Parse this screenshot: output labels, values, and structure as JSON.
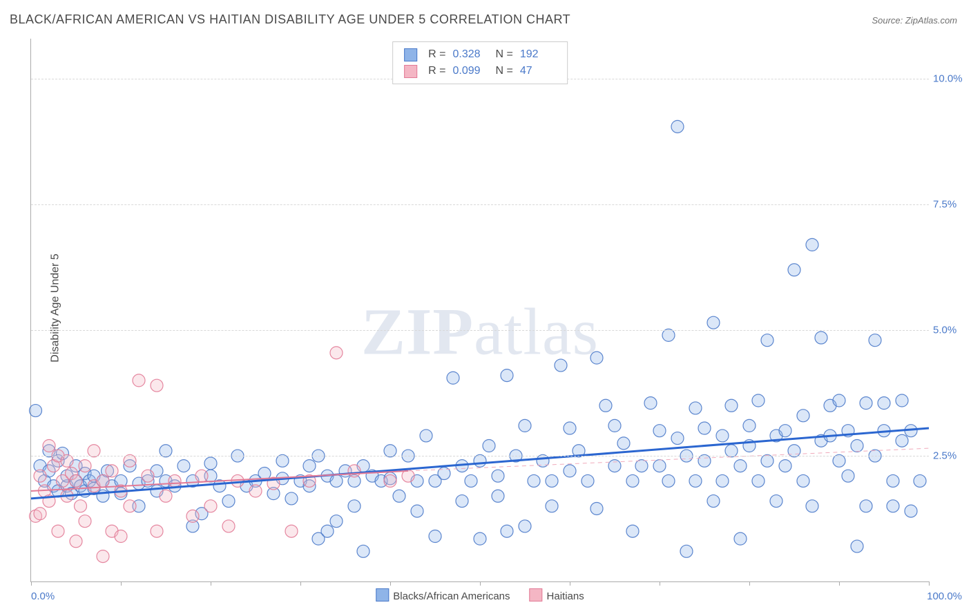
{
  "title": "BLACK/AFRICAN AMERICAN VS HAITIAN DISABILITY AGE UNDER 5 CORRELATION CHART",
  "source": "Source: ZipAtlas.com",
  "ylabel": "Disability Age Under 5",
  "watermark_a": "ZIP",
  "watermark_b": "atlas",
  "chart": {
    "type": "scatter",
    "background_color": "#ffffff",
    "grid_color": "#d8d8d8",
    "axis_color": "#aaaaaa",
    "tick_label_color": "#4a79c9",
    "text_color": "#4a4a4a",
    "title_fontsize": 18,
    "label_fontsize": 16,
    "tick_fontsize": 15,
    "xlim": [
      0,
      100
    ],
    "ylim": [
      0,
      10.8
    ],
    "x_ticks": [
      0,
      10,
      20,
      30,
      40,
      50,
      60,
      70,
      80,
      90,
      100
    ],
    "x_tick_labels_shown": {
      "0": "0.0%",
      "100": "100.0%"
    },
    "y_grid": [
      2.5,
      5.0,
      7.5,
      10.0
    ],
    "y_tick_labels": [
      "2.5%",
      "5.0%",
      "7.5%",
      "10.0%"
    ],
    "marker_radius": 9,
    "marker_fill_opacity": 0.32,
    "marker_stroke_opacity": 0.9,
    "series": [
      {
        "name": "Blacks/African Americans",
        "color_fill": "#8fb4e8",
        "color_stroke": "#4a79c9",
        "trend": {
          "x0": 0,
          "y0": 1.65,
          "x1": 100,
          "y1": 3.05,
          "width": 3,
          "dashed": false,
          "color": "#2b66d0"
        },
        "trend_extrap": null,
        "R": "0.328",
        "N": "192",
        "points": [
          [
            0.5,
            3.4
          ],
          [
            1,
            2.3
          ],
          [
            1.5,
            2.0
          ],
          [
            2,
            2.2
          ],
          [
            2,
            2.6
          ],
          [
            2.5,
            1.9
          ],
          [
            3,
            1.8
          ],
          [
            3,
            2.4
          ],
          [
            3.5,
            2.55
          ],
          [
            4,
            1.9
          ],
          [
            4,
            2.1
          ],
          [
            4.5,
            1.75
          ],
          [
            5,
            2.0
          ],
          [
            5,
            2.3
          ],
          [
            5.5,
            1.9
          ],
          [
            6,
            1.8
          ],
          [
            6,
            2.15
          ],
          [
            6.5,
            2.0
          ],
          [
            7,
            2.1
          ],
          [
            7,
            1.85
          ],
          [
            8,
            1.7
          ],
          [
            8,
            2.0
          ],
          [
            8.5,
            2.2
          ],
          [
            9,
            1.9
          ],
          [
            10,
            2.0
          ],
          [
            10,
            1.75
          ],
          [
            11,
            2.3
          ],
          [
            12,
            1.5
          ],
          [
            12,
            1.95
          ],
          [
            13,
            2.0
          ],
          [
            14,
            2.2
          ],
          [
            14,
            1.8
          ],
          [
            15,
            2.6
          ],
          [
            15,
            2.0
          ],
          [
            16,
            1.9
          ],
          [
            17,
            2.3
          ],
          [
            18,
            1.1
          ],
          [
            18,
            2.0
          ],
          [
            19,
            1.35
          ],
          [
            20,
            2.1
          ],
          [
            20,
            2.35
          ],
          [
            21,
            1.9
          ],
          [
            22,
            1.6
          ],
          [
            23,
            2.5
          ],
          [
            24,
            1.9
          ],
          [
            25,
            2.0
          ],
          [
            26,
            2.15
          ],
          [
            27,
            1.75
          ],
          [
            28,
            2.4
          ],
          [
            28,
            2.05
          ],
          [
            29,
            1.65
          ],
          [
            30,
            2.0
          ],
          [
            31,
            2.3
          ],
          [
            31,
            1.9
          ],
          [
            32,
            0.85
          ],
          [
            32,
            2.5
          ],
          [
            33,
            1.0
          ],
          [
            33,
            2.1
          ],
          [
            34,
            1.2
          ],
          [
            34,
            2.0
          ],
          [
            35,
            2.2
          ],
          [
            36,
            1.5
          ],
          [
            36,
            2.0
          ],
          [
            37,
            0.6
          ],
          [
            37,
            2.3
          ],
          [
            38,
            2.1
          ],
          [
            39,
            2.0
          ],
          [
            40,
            2.6
          ],
          [
            40,
            2.05
          ],
          [
            41,
            1.7
          ],
          [
            42,
            2.5
          ],
          [
            43,
            1.4
          ],
          [
            43,
            2.0
          ],
          [
            44,
            2.9
          ],
          [
            45,
            0.9
          ],
          [
            45,
            2.0
          ],
          [
            46,
            2.15
          ],
          [
            47,
            4.05
          ],
          [
            48,
            2.3
          ],
          [
            48,
            1.6
          ],
          [
            49,
            2.0
          ],
          [
            50,
            0.85
          ],
          [
            50,
            2.4
          ],
          [
            51,
            2.7
          ],
          [
            52,
            1.7
          ],
          [
            52,
            2.1
          ],
          [
            53,
            1.0
          ],
          [
            53,
            4.1
          ],
          [
            54,
            2.5
          ],
          [
            55,
            1.1
          ],
          [
            55,
            3.1
          ],
          [
            56,
            2.0
          ],
          [
            57,
            2.4
          ],
          [
            58,
            1.5
          ],
          [
            58,
            2.0
          ],
          [
            59,
            4.3
          ],
          [
            60,
            3.05
          ],
          [
            60,
            2.2
          ],
          [
            61,
            2.6
          ],
          [
            62,
            2.0
          ],
          [
            63,
            4.45
          ],
          [
            63,
            1.45
          ],
          [
            64,
            3.5
          ],
          [
            65,
            3.1
          ],
          [
            65,
            2.3
          ],
          [
            66,
            2.75
          ],
          [
            67,
            1.0
          ],
          [
            67,
            2.0
          ],
          [
            68,
            2.3
          ],
          [
            69,
            3.55
          ],
          [
            70,
            3.0
          ],
          [
            70,
            2.3
          ],
          [
            71,
            2.0
          ],
          [
            71,
            4.9
          ],
          [
            72,
            2.85
          ],
          [
            72,
            9.05
          ],
          [
            73,
            2.5
          ],
          [
            73,
            0.6
          ],
          [
            74,
            3.45
          ],
          [
            74,
            2.0
          ],
          [
            75,
            2.4
          ],
          [
            75,
            3.05
          ],
          [
            76,
            5.15
          ],
          [
            76,
            1.6
          ],
          [
            77,
            2.0
          ],
          [
            77,
            2.9
          ],
          [
            78,
            3.5
          ],
          [
            78,
            2.6
          ],
          [
            79,
            2.3
          ],
          [
            79,
            0.85
          ],
          [
            80,
            2.7
          ],
          [
            80,
            3.1
          ],
          [
            81,
            2.0
          ],
          [
            81,
            3.6
          ],
          [
            82,
            4.8
          ],
          [
            82,
            2.4
          ],
          [
            83,
            2.9
          ],
          [
            83,
            1.6
          ],
          [
            84,
            2.3
          ],
          [
            84,
            3.0
          ],
          [
            85,
            6.2
          ],
          [
            85,
            2.6
          ],
          [
            86,
            3.3
          ],
          [
            86,
            2.0
          ],
          [
            87,
            1.5
          ],
          [
            87,
            6.7
          ],
          [
            88,
            2.8
          ],
          [
            88,
            4.85
          ],
          [
            89,
            3.5
          ],
          [
            89,
            2.9
          ],
          [
            90,
            2.4
          ],
          [
            90,
            3.6
          ],
          [
            91,
            2.1
          ],
          [
            91,
            3.0
          ],
          [
            92,
            2.7
          ],
          [
            92,
            0.7
          ],
          [
            93,
            1.5
          ],
          [
            93,
            3.55
          ],
          [
            94,
            2.5
          ],
          [
            94,
            4.8
          ],
          [
            95,
            3.0
          ],
          [
            95,
            3.55
          ],
          [
            96,
            2.0
          ],
          [
            96,
            1.5
          ],
          [
            97,
            2.8
          ],
          [
            97,
            3.6
          ],
          [
            98,
            1.4
          ],
          [
            98,
            3.0
          ],
          [
            99,
            2.0
          ]
        ]
      },
      {
        "name": "Haitians",
        "color_fill": "#f4b6c4",
        "color_stroke": "#e27a96",
        "trend": {
          "x0": 0,
          "y0": 1.8,
          "x1": 42,
          "y1": 2.2,
          "width": 2,
          "dashed": false,
          "color": "#e27a96"
        },
        "trend_extrap": {
          "x0": 42,
          "y0": 2.2,
          "x1": 100,
          "y1": 2.65,
          "width": 1,
          "dashed": true,
          "color": "#f0aabb"
        },
        "R": "0.099",
        "N": "47",
        "points": [
          [
            0.5,
            1.3
          ],
          [
            1,
            1.35
          ],
          [
            1,
            2.1
          ],
          [
            1.5,
            1.8
          ],
          [
            2,
            2.7
          ],
          [
            2,
            1.6
          ],
          [
            2.5,
            2.3
          ],
          [
            3,
            1.0
          ],
          [
            3,
            2.5
          ],
          [
            3.5,
            2.0
          ],
          [
            4,
            2.4
          ],
          [
            4,
            1.7
          ],
          [
            4.5,
            2.15
          ],
          [
            5,
            0.8
          ],
          [
            5,
            2.0
          ],
          [
            5.5,
            1.5
          ],
          [
            6,
            2.3
          ],
          [
            6,
            1.2
          ],
          [
            7,
            2.6
          ],
          [
            7,
            1.9
          ],
          [
            8,
            0.5
          ],
          [
            8,
            2.0
          ],
          [
            9,
            1.0
          ],
          [
            9,
            2.2
          ],
          [
            10,
            1.8
          ],
          [
            10,
            0.9
          ],
          [
            11,
            2.4
          ],
          [
            11,
            1.5
          ],
          [
            12,
            4.0
          ],
          [
            13,
            2.1
          ],
          [
            14,
            1.0
          ],
          [
            14,
            3.9
          ],
          [
            15,
            1.7
          ],
          [
            16,
            2.0
          ],
          [
            18,
            1.3
          ],
          [
            19,
            2.1
          ],
          [
            20,
            1.5
          ],
          [
            22,
            1.1
          ],
          [
            23,
            2.0
          ],
          [
            25,
            1.8
          ],
          [
            27,
            1.95
          ],
          [
            29,
            1.0
          ],
          [
            31,
            2.0
          ],
          [
            34,
            4.55
          ],
          [
            36,
            2.2
          ],
          [
            40,
            2.0
          ],
          [
            42,
            2.1
          ]
        ]
      }
    ],
    "legend_bottom": [
      {
        "label": "Blacks/African Americans",
        "fill": "#8fb4e8",
        "stroke": "#4a79c9"
      },
      {
        "label": "Haitians",
        "fill": "#f4b6c4",
        "stroke": "#e27a96"
      }
    ]
  }
}
